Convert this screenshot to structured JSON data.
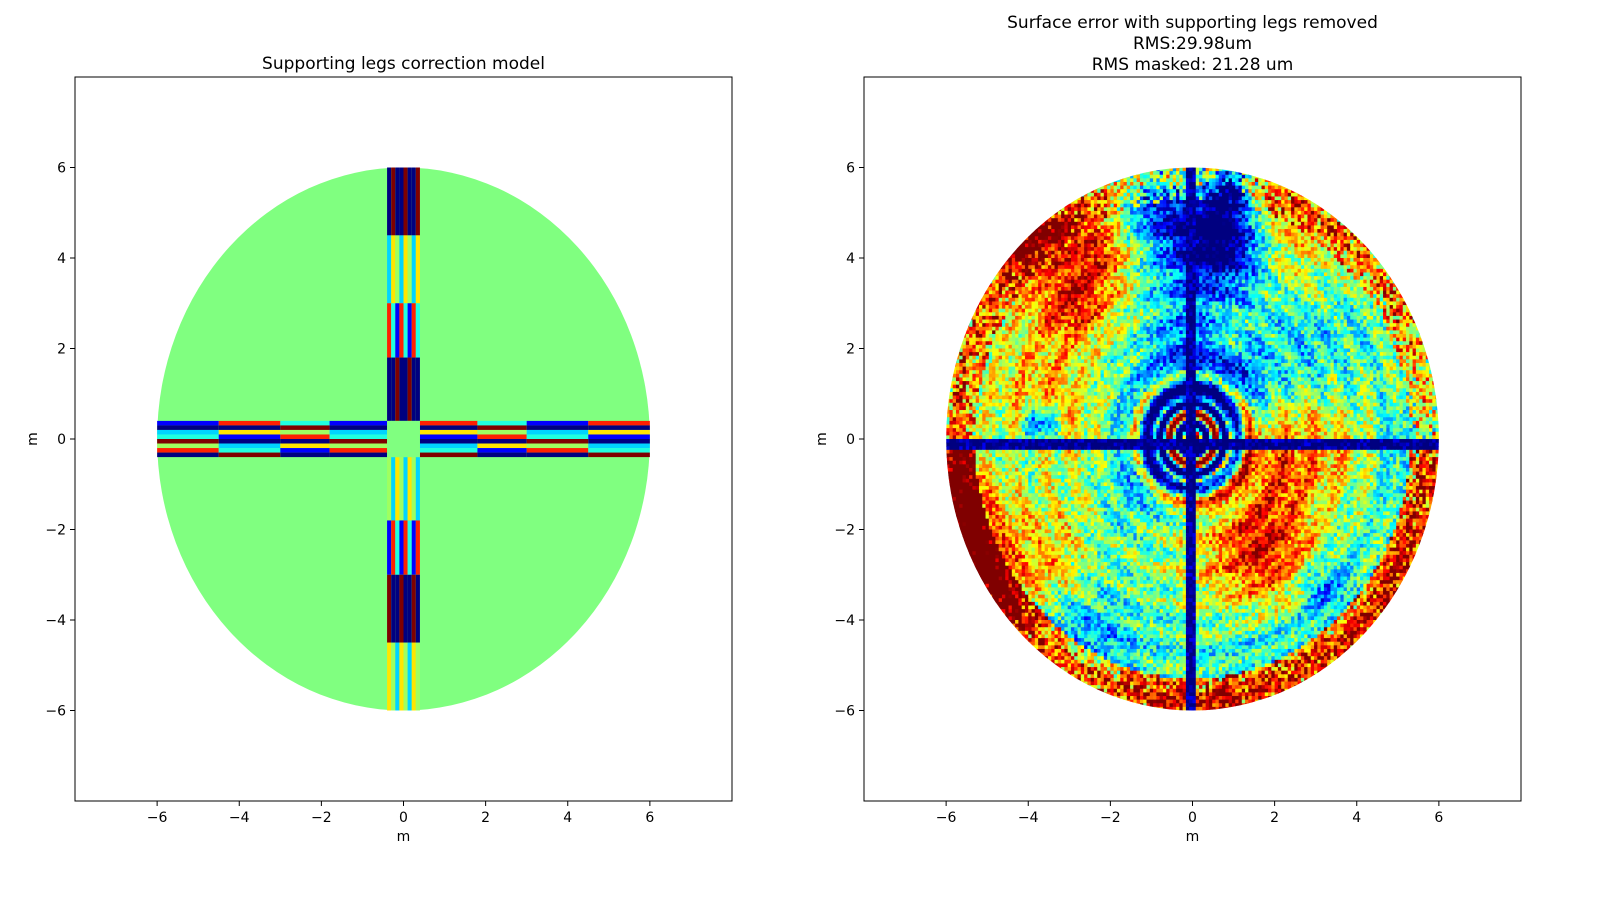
{
  "chart_data": [
    {
      "type": "heatmap",
      "title": "Supporting legs correction model",
      "xlabel": "m",
      "ylabel": "m",
      "xlim": [
        -8,
        8
      ],
      "ylim": [
        -8,
        8
      ],
      "xticks": [
        -6,
        -4,
        -2,
        0,
        2,
        4,
        6
      ],
      "yticks": [
        -6,
        -4,
        -2,
        0,
        2,
        4,
        6
      ],
      "grid": false,
      "colormap": "jet",
      "aperture_radius": 6,
      "background_value_color": "#80ff80",
      "leg_half_width": 0.4,
      "content": "Circular aperture with a uniform value; four supporting-leg strips (vertical and horizontal) shown as banded correction values"
    },
    {
      "type": "heatmap",
      "title_lines": [
        "Surface error with supporting legs removed",
        "RMS:29.98um",
        "RMS masked: 21.28 um"
      ],
      "xlabel": "m",
      "ylabel": "m",
      "xlim": [
        -8,
        8
      ],
      "ylim": [
        -8,
        8
      ],
      "xticks": [
        -6,
        -4,
        -2,
        0,
        2,
        4,
        6
      ],
      "yticks": [
        -6,
        -4,
        -2,
        0,
        2,
        4,
        6
      ],
      "grid": false,
      "colormap": "jet",
      "aperture_radius": 6,
      "content": "Noisy surface error map inside a circular aperture with rings, faint leg shadows and a central target pattern"
    }
  ]
}
